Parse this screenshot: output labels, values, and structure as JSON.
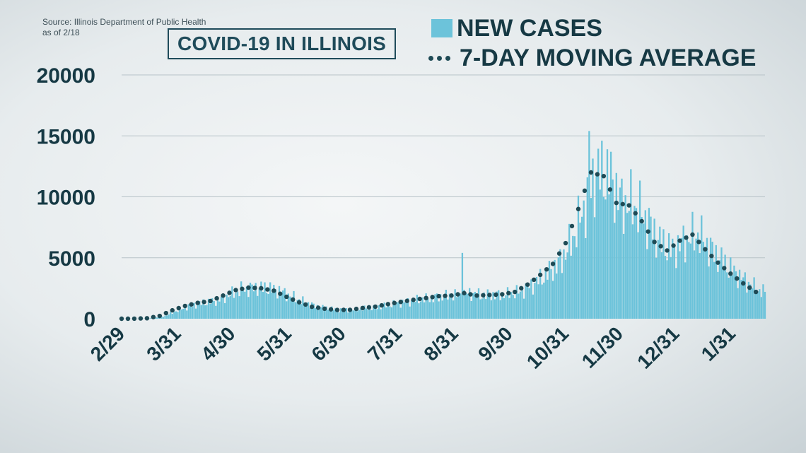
{
  "header": {
    "source_line1": "Source: Illinois Department of Public Health",
    "source_line2": "as of 2/18",
    "title": "COVID-19 IN ILLINOIS"
  },
  "legend": {
    "bars_label": "NEW CASES",
    "avg_label": "7-DAY MOVING AVERAGE"
  },
  "colors": {
    "bar": "#6cc3da",
    "avg_dot": "#1e4a55",
    "text": "#163944",
    "grid": "#b8c3c8"
  },
  "chart_data": {
    "type": "bar",
    "title": "COVID-19 IN ILLINOIS",
    "xlabel": "",
    "ylabel": "",
    "ylim": [
      0,
      20000
    ],
    "yticks": [
      0,
      5000,
      10000,
      15000,
      20000
    ],
    "grid": true,
    "legend_position": "top-right",
    "x_start": "2/29",
    "x_end": "2/18",
    "xtick_labels": [
      "2/29",
      "3/31",
      "4/30",
      "5/31",
      "6/30",
      "7/31",
      "8/31",
      "9/30",
      "10/31",
      "11/30",
      "12/31",
      "1/31"
    ],
    "series": [
      {
        "name": "NEW CASES",
        "type": "bar",
        "weekly_avg_by_week_start": [
          [
            "2/29",
            3
          ],
          [
            "3/7",
            6
          ],
          [
            "3/14",
            40
          ],
          [
            "3/21",
            230
          ],
          [
            "3/28",
            690
          ],
          [
            "4/4",
            1050
          ],
          [
            "4/11",
            1300
          ],
          [
            "4/18",
            1450
          ],
          [
            "4/25",
            1900
          ],
          [
            "5/2",
            2350
          ],
          [
            "5/9",
            2550
          ],
          [
            "5/16",
            2500
          ],
          [
            "5/23",
            2300
          ],
          [
            "5/30",
            1800
          ],
          [
            "6/6",
            1350
          ],
          [
            "6/13",
            980
          ],
          [
            "6/20",
            820
          ],
          [
            "6/27",
            720
          ],
          [
            "7/4",
            730
          ],
          [
            "7/11",
            880
          ],
          [
            "7/18",
            990
          ],
          [
            "7/25",
            1200
          ],
          [
            "8/1",
            1380
          ],
          [
            "8/8",
            1550
          ],
          [
            "8/15",
            1700
          ],
          [
            "8/22",
            1850
          ],
          [
            "8/29",
            1900
          ],
          [
            "9/5",
            2100
          ],
          [
            "9/12",
            1900
          ],
          [
            "9/19",
            1950
          ],
          [
            "9/26",
            2000
          ],
          [
            "10/3",
            2200
          ],
          [
            "10/10",
            2800
          ],
          [
            "10/17",
            3600
          ],
          [
            "10/24",
            4500
          ],
          [
            "10/31",
            6200
          ],
          [
            "11/7",
            9000
          ],
          [
            "11/14",
            12000
          ],
          [
            "11/21",
            11700
          ],
          [
            "11/28",
            9500
          ],
          [
            "12/5",
            9300
          ],
          [
            "12/12",
            8000
          ],
          [
            "12/19",
            6300
          ],
          [
            "12/26",
            5600
          ],
          [
            "1/2",
            6400
          ],
          [
            "1/9",
            6900
          ],
          [
            "1/16",
            5700
          ],
          [
            "1/23",
            4600
          ],
          [
            "1/30",
            3700
          ],
          [
            "2/6",
            2900
          ],
          [
            "2/13",
            2200
          ]
        ],
        "peak_day": {
          "date": "11/13",
          "value": 15400
        },
        "spike_day": {
          "date": "9/4",
          "value": 5400
        }
      },
      {
        "name": "7-DAY MOVING AVERAGE",
        "type": "dotted-line",
        "points": [
          [
            "2/29",
            0
          ],
          [
            "3/7",
            5
          ],
          [
            "3/14",
            40
          ],
          [
            "3/21",
            230
          ],
          [
            "3/28",
            690
          ],
          [
            "4/4",
            1050
          ],
          [
            "4/11",
            1300
          ],
          [
            "4/18",
            1450
          ],
          [
            "4/25",
            1900
          ],
          [
            "5/2",
            2350
          ],
          [
            "5/9",
            2550
          ],
          [
            "5/16",
            2500
          ],
          [
            "5/23",
            2300
          ],
          [
            "5/30",
            1800
          ],
          [
            "6/6",
            1350
          ],
          [
            "6/13",
            980
          ],
          [
            "6/20",
            820
          ],
          [
            "6/27",
            720
          ],
          [
            "7/4",
            730
          ],
          [
            "7/11",
            880
          ],
          [
            "7/18",
            990
          ],
          [
            "7/25",
            1200
          ],
          [
            "8/1",
            1380
          ],
          [
            "8/8",
            1550
          ],
          [
            "8/15",
            1700
          ],
          [
            "8/22",
            1850
          ],
          [
            "8/29",
            1900
          ],
          [
            "9/5",
            2100
          ],
          [
            "9/12",
            1900
          ],
          [
            "9/19",
            1950
          ],
          [
            "9/26",
            2000
          ],
          [
            "10/3",
            2200
          ],
          [
            "10/10",
            2800
          ],
          [
            "10/17",
            3600
          ],
          [
            "10/24",
            4500
          ],
          [
            "10/31",
            6200
          ],
          [
            "11/7",
            9000
          ],
          [
            "11/14",
            12000
          ],
          [
            "11/21",
            11700
          ],
          [
            "11/28",
            9500
          ],
          [
            "12/5",
            9300
          ],
          [
            "12/12",
            8000
          ],
          [
            "12/19",
            6300
          ],
          [
            "12/26",
            5600
          ],
          [
            "1/2",
            6400
          ],
          [
            "1/9",
            6900
          ],
          [
            "1/16",
            5700
          ],
          [
            "1/23",
            4600
          ],
          [
            "1/30",
            3700
          ],
          [
            "2/6",
            2900
          ],
          [
            "2/13",
            2200
          ]
        ]
      }
    ]
  }
}
